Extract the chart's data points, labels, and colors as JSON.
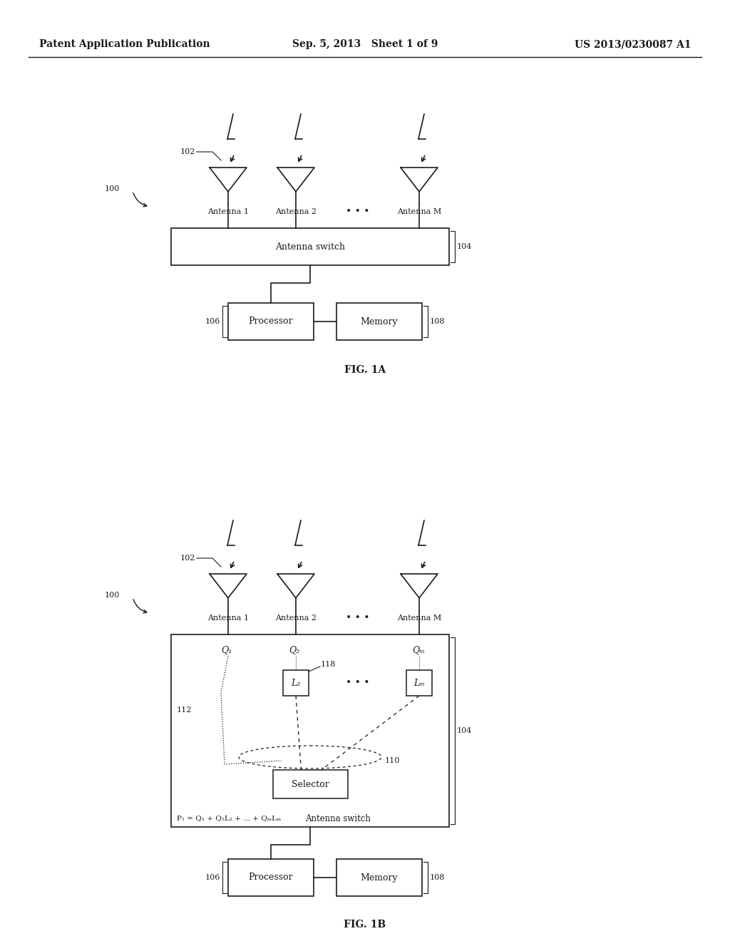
{
  "header_left": "Patent Application Publication",
  "header_center": "Sep. 5, 2013   Sheet 1 of 9",
  "header_right": "US 2013/0230087 A1",
  "bg_color": "#ffffff",
  "line_color": "#1a1a1a",
  "fig1a": {
    "label": "FIG. 1A",
    "antenna_switch_text": "Antenna switch",
    "processor_text": "Processor",
    "memory_text": "Memory",
    "antenna_labels": [
      "Antenna 1",
      "Antenna 2",
      "Antenna M"
    ]
  },
  "fig1b": {
    "label": "FIG. 1B",
    "antenna_switch_text": "Antenna switch",
    "processor_text": "Processor",
    "memory_text": "Memory",
    "selector_text": "Selector",
    "antenna_labels": [
      "Antenna 1",
      "Antenna 2",
      "Antenna M"
    ],
    "q_labels": [
      "Q₁",
      "Q₂",
      "Qₘ"
    ],
    "l2_label": "L₂",
    "lm_label": "Lₘ",
    "formula": "P₁ = Q₁ + Q₂L₂ + ... + QₘLₘ"
  }
}
